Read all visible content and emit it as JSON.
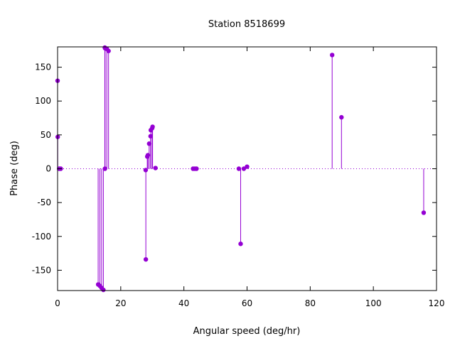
{
  "chart_data": {
    "type": "stem",
    "title": "Station 8518699",
    "xlabel": "Angular speed (deg/hr)",
    "ylabel": "Phase (deg)",
    "xlim": [
      0,
      120
    ],
    "ylim": [
      -180,
      180
    ],
    "x_ticks": [
      0,
      20,
      40,
      60,
      80,
      100,
      120
    ],
    "y_ticks": [
      -150,
      -100,
      -50,
      0,
      50,
      100,
      150
    ],
    "grid": false,
    "zero_line": "dotted",
    "color": "#9400d3",
    "points": [
      {
        "x": 0.0,
        "y": 130
      },
      {
        "x": 0.04,
        "y": 47
      },
      {
        "x": 0.5,
        "y": 0
      },
      {
        "x": 1.0,
        "y": 0
      },
      {
        "x": 12.85,
        "y": -171
      },
      {
        "x": 13.4,
        "y": -173
      },
      {
        "x": 13.94,
        "y": -176
      },
      {
        "x": 14.5,
        "y": -179
      },
      {
        "x": 14.96,
        "y": 179
      },
      {
        "x": 15.0,
        "y": 0
      },
      {
        "x": 15.04,
        "y": 178
      },
      {
        "x": 15.6,
        "y": 177
      },
      {
        "x": 16.14,
        "y": 174
      },
      {
        "x": 27.9,
        "y": -2
      },
      {
        "x": 27.95,
        "y": -134
      },
      {
        "x": 28.4,
        "y": 18
      },
      {
        "x": 28.6,
        "y": 20
      },
      {
        "x": 29.0,
        "y": 37
      },
      {
        "x": 29.45,
        "y": 48
      },
      {
        "x": 29.53,
        "y": 57
      },
      {
        "x": 29.96,
        "y": 60
      },
      {
        "x": 30.08,
        "y": 62
      },
      {
        "x": 31.0,
        "y": 1
      },
      {
        "x": 42.9,
        "y": 0
      },
      {
        "x": 43.48,
        "y": 0
      },
      {
        "x": 44.0,
        "y": 0
      },
      {
        "x": 57.4,
        "y": 0
      },
      {
        "x": 57.97,
        "y": -111
      },
      {
        "x": 58.98,
        "y": 0
      },
      {
        "x": 60.0,
        "y": 3
      },
      {
        "x": 86.95,
        "y": 168
      },
      {
        "x": 89.9,
        "y": 76
      },
      {
        "x": 115.94,
        "y": -65
      }
    ]
  }
}
